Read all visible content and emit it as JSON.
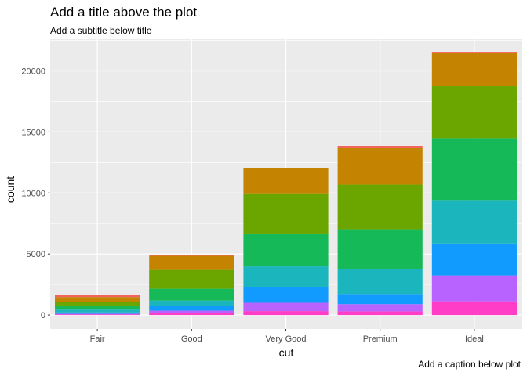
{
  "chart_data": {
    "type": "bar",
    "stacked": true,
    "title": "Add a title above the plot",
    "subtitle": "Add a subtitle below title",
    "caption": "Add a caption below plot",
    "xlabel": "cut",
    "ylabel": "count",
    "categories": [
      "Fair",
      "Good",
      "Very Good",
      "Premium",
      "Ideal"
    ],
    "ylim": [
      0,
      22600
    ],
    "yticks": [
      0,
      5000,
      10000,
      15000,
      20000
    ],
    "ytick_labels": [
      "0",
      "5000",
      "10000",
      "15000",
      "20000"
    ],
    "grid": true,
    "legend": "none",
    "series": [
      {
        "color": "#FF3DC6",
        "values": [
          50,
          160,
          320,
          300,
          1120
        ]
      },
      {
        "color": "#B863FF",
        "values": [
          50,
          200,
          680,
          590,
          2120
        ]
      },
      {
        "color": "#129BFF",
        "values": [
          110,
          360,
          1280,
          830,
          2620
        ]
      },
      {
        "color": "#1BB6BD",
        "values": [
          230,
          460,
          1700,
          2020,
          3560
        ]
      },
      {
        "color": "#15B957",
        "values": [
          270,
          970,
          2640,
          3290,
          5070
        ]
      },
      {
        "color": "#6BA600",
        "values": [
          340,
          1540,
          3290,
          3660,
          4260
        ]
      },
      {
        "color": "#C48300",
        "values": [
          420,
          1160,
          2130,
          2990,
          2700
        ]
      },
      {
        "color": "#F2645B",
        "values": [
          140,
          40,
          20,
          130,
          120
        ]
      }
    ]
  }
}
